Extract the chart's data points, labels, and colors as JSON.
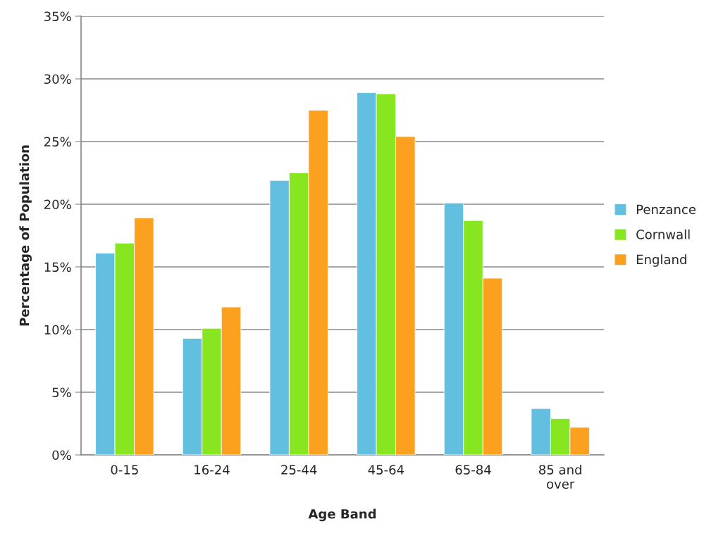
{
  "chart_data": {
    "type": "bar",
    "xlabel": "Age Band",
    "ylabel": "Percentage of Population",
    "categories": [
      "0-15",
      "16-24",
      "25-44",
      "45-64",
      "65-84",
      "85 and\nover"
    ],
    "series": [
      {
        "name": "Penzance",
        "color": "#63bfe0",
        "values": [
          16.1,
          9.3,
          21.9,
          28.9,
          20.1,
          3.7
        ]
      },
      {
        "name": "Cornwall",
        "color": "#88e620",
        "values": [
          16.9,
          10.1,
          22.5,
          28.8,
          18.7,
          2.9
        ]
      },
      {
        "name": "England",
        "color": "#fba01f",
        "values": [
          18.9,
          11.8,
          27.5,
          25.4,
          14.1,
          2.2
        ]
      }
    ],
    "ylim": [
      0,
      35
    ],
    "yticks": [
      {
        "value": 0,
        "label": "0%"
      },
      {
        "value": 5,
        "label": "5%"
      },
      {
        "value": 10,
        "label": "10%"
      },
      {
        "value": 15,
        "label": "15%"
      },
      {
        "value": 20,
        "label": "20%"
      },
      {
        "value": 25,
        "label": "25%"
      },
      {
        "value": 30,
        "label": "30%"
      },
      {
        "value": 35,
        "label": "35%"
      }
    ],
    "grid": "y",
    "legend": "right"
  }
}
